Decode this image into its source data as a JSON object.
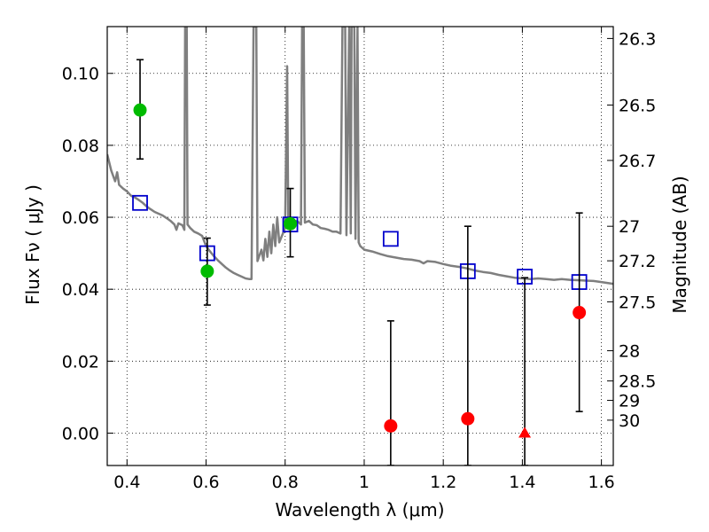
{
  "chart_data": {
    "type": "scatter",
    "xlabel": "Wavelength  λ (μm)",
    "ylabel": "Flux  Fν  ( μJy )",
    "ylabel_right": "Magnitude (AB)",
    "xlim": [
      0.35,
      1.63
    ],
    "ylim": [
      -0.009,
      0.113
    ],
    "grid": true,
    "x_ticks": [
      0.4,
      0.6,
      0.8,
      1.0,
      1.2,
      1.4,
      1.6
    ],
    "x_tick_labels": [
      "0.4",
      "0.6",
      "0.8",
      "1",
      "1.2",
      "1.4",
      "1.6"
    ],
    "y_ticks": [
      0.0,
      0.02,
      0.04,
      0.06,
      0.08,
      0.1
    ],
    "y_tick_labels": [
      "0.00",
      "0.02",
      "0.04",
      "0.06",
      "0.08",
      "0.10"
    ],
    "mag_ticks": [
      {
        "flux": 0.1097,
        "label": "26.3"
      },
      {
        "flux": 0.0912,
        "label": "26.5"
      },
      {
        "flux": 0.0758,
        "label": "26.7"
      },
      {
        "flux": 0.0575,
        "label": "27"
      },
      {
        "flux": 0.0479,
        "label": "27.2"
      },
      {
        "flux": 0.0365,
        "label": "27.5"
      },
      {
        "flux": 0.0229,
        "label": "28"
      },
      {
        "flux": 0.0145,
        "label": "28.5"
      },
      {
        "flux": 0.0091,
        "label": "29"
      },
      {
        "flux": 0.0036,
        "label": "30"
      }
    ],
    "model_color": "#7f7f7f",
    "model_spectrum": [
      [
        0.35,
        0.0775
      ],
      [
        0.36,
        0.073
      ],
      [
        0.37,
        0.07
      ],
      [
        0.375,
        0.0725
      ],
      [
        0.38,
        0.069
      ],
      [
        0.39,
        0.068
      ],
      [
        0.4,
        0.0672
      ],
      [
        0.41,
        0.066
      ],
      [
        0.42,
        0.0655
      ],
      [
        0.43,
        0.0648
      ],
      [
        0.44,
        0.064
      ],
      [
        0.45,
        0.063
      ],
      [
        0.46,
        0.0622
      ],
      [
        0.47,
        0.0615
      ],
      [
        0.48,
        0.061
      ],
      [
        0.49,
        0.0605
      ],
      [
        0.5,
        0.0598
      ],
      [
        0.51,
        0.059
      ],
      [
        0.52,
        0.058
      ],
      [
        0.525,
        0.0565
      ],
      [
        0.53,
        0.0583
      ],
      [
        0.54,
        0.0578
      ],
      [
        0.545,
        0.0565
      ],
      [
        0.547,
        0.113
      ],
      [
        0.551,
        0.113
      ],
      [
        0.553,
        0.058
      ],
      [
        0.56,
        0.057
      ],
      [
        0.57,
        0.056
      ],
      [
        0.58,
        0.0555
      ],
      [
        0.59,
        0.0548
      ],
      [
        0.6,
        0.052
      ],
      [
        0.61,
        0.0505
      ],
      [
        0.62,
        0.0492
      ],
      [
        0.63,
        0.048
      ],
      [
        0.64,
        0.047
      ],
      [
        0.65,
        0.046
      ],
      [
        0.66,
        0.0452
      ],
      [
        0.67,
        0.0445
      ],
      [
        0.68,
        0.044
      ],
      [
        0.69,
        0.0435
      ],
      [
        0.7,
        0.043
      ],
      [
        0.71,
        0.0428
      ],
      [
        0.715,
        0.0428
      ],
      [
        0.72,
        0.113
      ],
      [
        0.727,
        0.113
      ],
      [
        0.73,
        0.0478
      ],
      [
        0.74,
        0.051
      ],
      [
        0.745,
        0.048
      ],
      [
        0.75,
        0.054
      ],
      [
        0.755,
        0.049
      ],
      [
        0.76,
        0.056
      ],
      [
        0.765,
        0.05
      ],
      [
        0.77,
        0.058
      ],
      [
        0.775,
        0.052
      ],
      [
        0.78,
        0.06
      ],
      [
        0.785,
        0.053
      ],
      [
        0.8,
        0.057
      ],
      [
        0.805,
        0.102
      ],
      [
        0.808,
        0.0575
      ],
      [
        0.82,
        0.0585
      ],
      [
        0.83,
        0.059
      ],
      [
        0.84,
        0.058
      ],
      [
        0.843,
        0.113
      ],
      [
        0.847,
        0.113
      ],
      [
        0.85,
        0.0585
      ],
      [
        0.86,
        0.059
      ],
      [
        0.87,
        0.058
      ],
      [
        0.88,
        0.0578
      ],
      [
        0.89,
        0.057
      ],
      [
        0.9,
        0.0568
      ],
      [
        0.91,
        0.0565
      ],
      [
        0.92,
        0.056
      ],
      [
        0.93,
        0.056
      ],
      [
        0.94,
        0.0555
      ],
      [
        0.945,
        0.113
      ],
      [
        0.952,
        0.113
      ],
      [
        0.955,
        0.055
      ],
      [
        0.962,
        0.113
      ],
      [
        0.966,
        0.0555
      ],
      [
        0.968,
        0.113
      ],
      [
        0.975,
        0.113
      ],
      [
        0.978,
        0.054
      ],
      [
        0.983,
        0.113
      ],
      [
        0.986,
        0.053
      ],
      [
        0.99,
        0.052
      ],
      [
        1.0,
        0.051
      ],
      [
        1.02,
        0.0505
      ],
      [
        1.04,
        0.0498
      ],
      [
        1.06,
        0.0492
      ],
      [
        1.08,
        0.0488
      ],
      [
        1.1,
        0.0484
      ],
      [
        1.12,
        0.0482
      ],
      [
        1.14,
        0.0478
      ],
      [
        1.15,
        0.0472
      ],
      [
        1.16,
        0.0478
      ],
      [
        1.18,
        0.0476
      ],
      [
        1.2,
        0.047
      ],
      [
        1.22,
        0.0465
      ],
      [
        1.24,
        0.0462
      ],
      [
        1.26,
        0.0458
      ],
      [
        1.28,
        0.0452
      ],
      [
        1.3,
        0.0448
      ],
      [
        1.32,
        0.0445
      ],
      [
        1.34,
        0.044
      ],
      [
        1.36,
        0.0436
      ],
      [
        1.38,
        0.0432
      ],
      [
        1.4,
        0.043
      ],
      [
        1.42,
        0.0428
      ],
      [
        1.44,
        0.043
      ],
      [
        1.46,
        0.0428
      ],
      [
        1.48,
        0.0426
      ],
      [
        1.5,
        0.0428
      ],
      [
        1.52,
        0.0426
      ],
      [
        1.54,
        0.0425
      ],
      [
        1.56,
        0.0424
      ],
      [
        1.58,
        0.0423
      ],
      [
        1.6,
        0.042
      ],
      [
        1.63,
        0.0415
      ]
    ],
    "series": [
      {
        "marker": "open-square",
        "color": "#0000cc",
        "points": [
          [
            0.433,
            0.064
          ],
          [
            0.603,
            0.05
          ],
          [
            0.813,
            0.058
          ],
          [
            1.067,
            0.054
          ],
          [
            1.262,
            0.045
          ],
          [
            1.406,
            0.0435
          ],
          [
            1.544,
            0.042
          ]
        ]
      },
      {
        "marker": "filled-circle",
        "color": "#00bb00",
        "points": [
          {
            "x": 0.433,
            "y": 0.0898,
            "err_low": 0.0762,
            "err_high": 0.1038
          },
          {
            "x": 0.603,
            "y": 0.045,
            "err_low": 0.0356,
            "err_high": 0.0542
          },
          {
            "x": 0.813,
            "y": 0.0582,
            "err_low": 0.049,
            "err_high": 0.068
          }
        ]
      },
      {
        "marker": "filled-circle",
        "color": "#ff0000",
        "points": [
          {
            "x": 1.067,
            "y": 0.002,
            "err_low": -0.009,
            "err_high": 0.0312
          },
          {
            "x": 1.262,
            "y": 0.004,
            "err_low": -0.009,
            "err_high": 0.0575
          },
          {
            "x": 1.544,
            "y": 0.0335,
            "err_low": 0.006,
            "err_high": 0.0612
          }
        ]
      },
      {
        "marker": "filled-triangle",
        "color": "#ff0000",
        "points": [
          {
            "x": 1.406,
            "y": 0.0,
            "err_low": -0.009,
            "err_high": 0.0432
          }
        ]
      }
    ]
  }
}
